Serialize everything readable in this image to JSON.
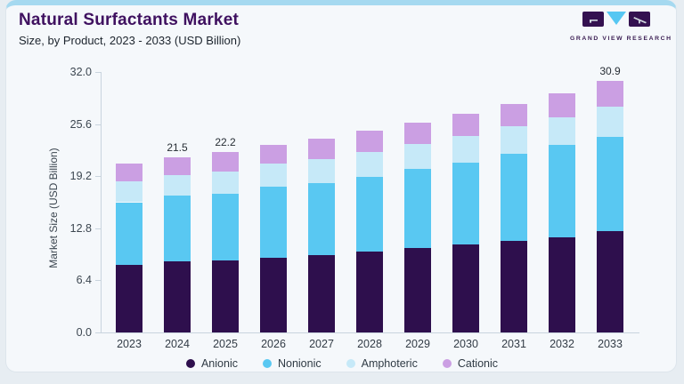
{
  "header": {
    "title": "Natural Surfactants Market",
    "subtitle": "Size, by Product, 2023 - 2033 (USD Billion)"
  },
  "logo": {
    "name": "grand-view-research-logo",
    "text": "GRAND VIEW RESEARCH",
    "mark_color": "#341150",
    "accent_color": "#56c7f2"
  },
  "chart_data": {
    "type": "bar",
    "stacked": true,
    "title": "Natural Surfactants Market Size, by Product, 2023 - 2033 (USD Billion)",
    "ylabel": "Market Size (USD Billion)",
    "xlabel": "",
    "ylim": [
      0,
      32
    ],
    "yticks": [
      "0.0",
      "6.4",
      "12.8",
      "19.2",
      "25.6",
      "32.0"
    ],
    "ytick_values": [
      0,
      6.4,
      12.8,
      19.2,
      25.6,
      32.0
    ],
    "grid": false,
    "legend_position": "bottom",
    "categories": [
      "2023",
      "2024",
      "2025",
      "2026",
      "2027",
      "2028",
      "2029",
      "2030",
      "2031",
      "2032",
      "2033"
    ],
    "series": [
      {
        "name": "Anionic",
        "color": "#2e0f4d",
        "values": [
          8.3,
          8.7,
          8.9,
          9.2,
          9.5,
          9.9,
          10.4,
          10.8,
          11.2,
          11.7,
          12.4
        ]
      },
      {
        "name": "Nonionic",
        "color": "#59c8f2",
        "values": [
          7.7,
          8.1,
          8.1,
          8.7,
          8.9,
          9.2,
          9.7,
          10.1,
          10.7,
          11.3,
          11.6
        ]
      },
      {
        "name": "Amphoteric",
        "color": "#c6e9f8",
        "values": [
          2.6,
          2.5,
          2.8,
          2.8,
          2.9,
          3.1,
          3.1,
          3.2,
          3.4,
          3.4,
          3.7
        ]
      },
      {
        "name": "Cationic",
        "color": "#cb9fe3",
        "values": [
          2.1,
          2.2,
          2.4,
          2.3,
          2.5,
          2.6,
          2.6,
          2.8,
          2.8,
          3.0,
          3.2
        ]
      }
    ],
    "totals": [
      20.7,
      21.5,
      22.2,
      23.0,
      23.8,
      24.8,
      25.8,
      26.9,
      28.1,
      29.4,
      30.9
    ],
    "total_labels": [
      "",
      "21.5",
      "22.2",
      "",
      "",
      "",
      "",
      "",
      "",
      "",
      "30.9"
    ]
  }
}
